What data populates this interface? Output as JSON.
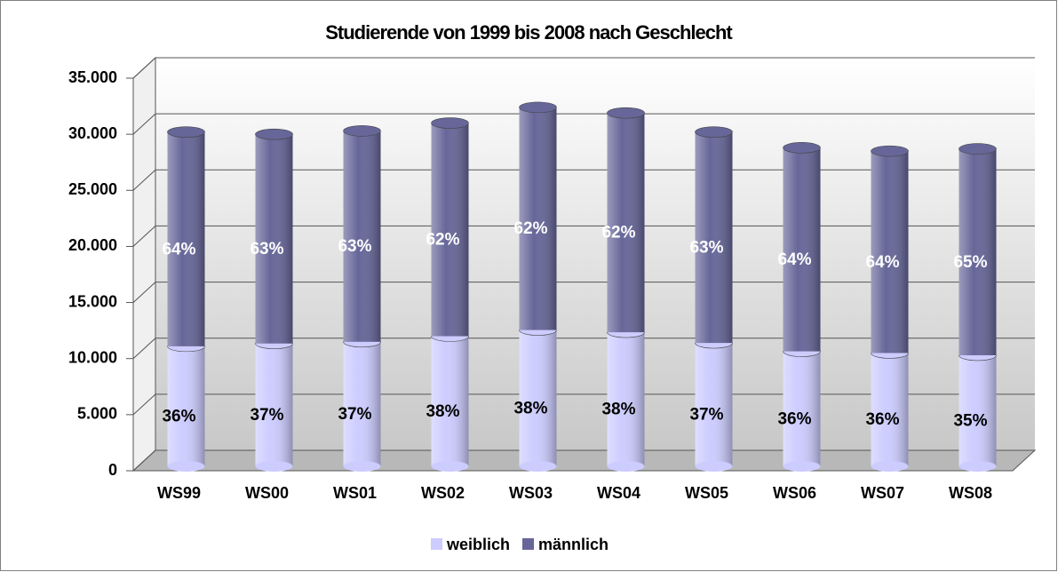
{
  "chart_data": {
    "type": "bar",
    "stacked": true,
    "title": "Studierende von 1999 bis 2008 nach Geschlecht",
    "categories": [
      "WS99",
      "WS00",
      "WS01",
      "WS02",
      "WS03",
      "WS04",
      "WS05",
      "WS06",
      "WS07",
      "WS08"
    ],
    "series": [
      {
        "name": "weiblich",
        "color": "#ccccff",
        "values": [
          10700,
          10950,
          11100,
          11600,
          12150,
          11950,
          11000,
          10250,
          10100,
          9900
        ],
        "share_labels": [
          "36%",
          "37%",
          "37%",
          "38%",
          "38%",
          "38%",
          "37%",
          "36%",
          "36%",
          "35%"
        ]
      },
      {
        "name": "männlich",
        "color": "#666699",
        "values": [
          19100,
          18650,
          18800,
          19000,
          19850,
          19550,
          18800,
          18150,
          18000,
          18400
        ],
        "share_labels": [
          "64%",
          "63%",
          "63%",
          "62%",
          "62%",
          "62%",
          "63%",
          "64%",
          "64%",
          "65%"
        ]
      }
    ],
    "ylim": [
      0,
      35000
    ],
    "yticks": [
      0,
      {
        "value": 5000,
        "label": "5.000"
      },
      {
        "value": 10000,
        "label": "10.000"
      },
      {
        "value": 15000,
        "label": "15.000"
      },
      {
        "value": 20000,
        "label": "20.000"
      },
      {
        "value": 25000,
        "label": "25.000"
      },
      {
        "value": 30000,
        "label": "30.000"
      },
      {
        "value": 35000,
        "label": "35.000"
      }
    ],
    "grid": true,
    "legend": "bottom"
  }
}
